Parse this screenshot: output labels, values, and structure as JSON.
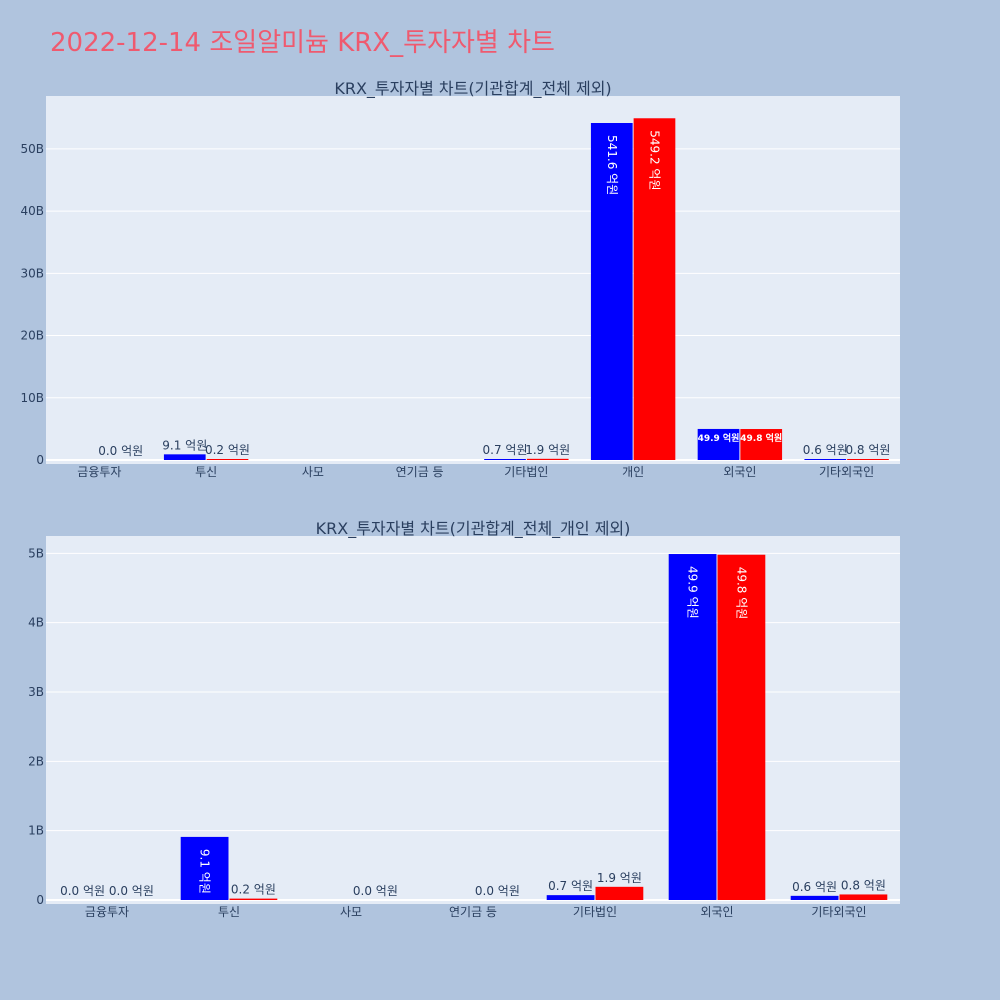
{
  "page": {
    "title": "2022-12-14 조일알미늄 KRX_투자자별 차트"
  },
  "colors": {
    "sell": "#0000ff",
    "buy": "#ff0000",
    "plot_bg": "#e5ecf6",
    "page_bg": "#b0c4de",
    "title": "#ef5a6f"
  },
  "chart_data": [
    {
      "type": "bar",
      "title": "KRX_투자자별 차트(기관합계_전체 제외)",
      "categories": [
        "금융투자",
        "투신",
        "사모",
        "연기금 등",
        "기타법인",
        "개인",
        "외국인",
        "기타외국인"
      ],
      "yticks": [
        "0",
        "10B",
        "20B",
        "30B",
        "40B",
        "50B"
      ],
      "ylim": [
        0,
        58500000000
      ],
      "series": [
        {
          "values": [
            0,
            910000000,
            0,
            0,
            70000000,
            54160000000,
            4990000000,
            60000000
          ],
          "labels": [
            "",
            "9.1 억원",
            "",
            "",
            "0.7 억원",
            "541.6 억원",
            "49.9 억원",
            "0.6 억원"
          ]
        },
        {
          "values": [
            0,
            20000000,
            0,
            0,
            190000000,
            54920000000,
            4980000000,
            80000000
          ],
          "labels": [
            "0.0 억원",
            "0.2 억원",
            "",
            "",
            "1.9 억원",
            "549.2 억원",
            "49.8 억원",
            "0.8 억원"
          ]
        }
      ]
    },
    {
      "type": "bar",
      "title": "KRX_투자자별 차트(기관합계_전체_개인 제외)",
      "categories": [
        "금융투자",
        "투신",
        "사모",
        "연기금 등",
        "기타법인",
        "외국인",
        "기타외국인"
      ],
      "yticks": [
        "0",
        "1B",
        "2B",
        "3B",
        "4B",
        "5B"
      ],
      "ylim": [
        0,
        5250000000
      ],
      "series": [
        {
          "values": [
            0,
            910000000,
            0,
            0,
            70000000,
            4990000000,
            60000000
          ],
          "labels": [
            "0.0 억원",
            "9.1 억원",
            "",
            "",
            "0.7 억원",
            "49.9 억원",
            "0.6 억원"
          ]
        },
        {
          "values": [
            0,
            20000000,
            0,
            0,
            190000000,
            4980000000,
            80000000
          ],
          "labels": [
            "0.0 억원",
            "0.2 억원",
            "0.0 억원",
            "0.0 억원",
            "1.9 억원",
            "49.8 억원",
            "0.8 억원"
          ]
        }
      ]
    }
  ]
}
